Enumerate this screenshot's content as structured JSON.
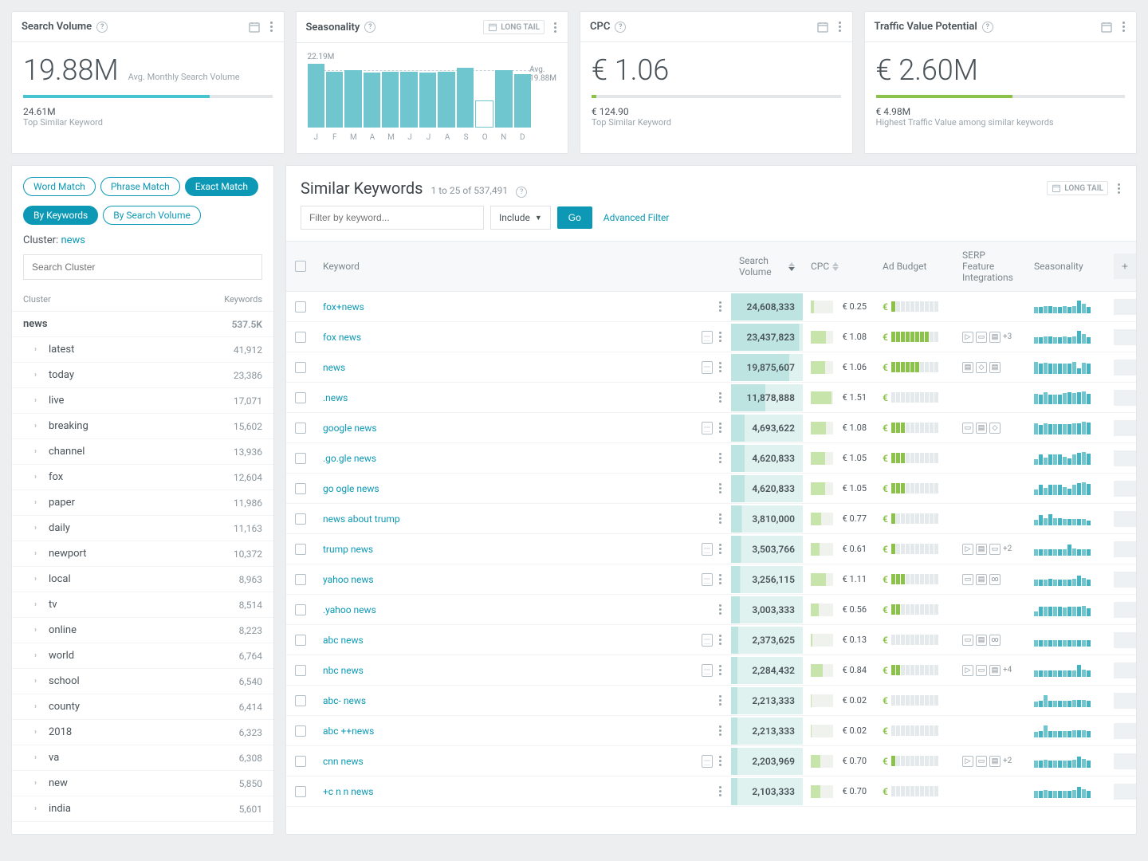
{
  "cards": {
    "search_volume": {
      "title": "Search Volume",
      "value": "19.88M",
      "label": "Avg. Monthly Search Volume",
      "bar_percent": 75,
      "sub_value": "24.61M",
      "sub_label": "Top Similar Keyword",
      "bar_color": "#46c4cf"
    },
    "seasonality": {
      "title": "Seasonality",
      "badge": "LONG TAIL",
      "max_label": "22.19M",
      "avg_label_top": "Avg.",
      "avg_label_val": "19.88M",
      "months": [
        "J",
        "F",
        "M",
        "A",
        "M",
        "J",
        "J",
        "A",
        "S",
        "O",
        "N",
        "D"
      ],
      "bars": [
        1.0,
        0.88,
        0.9,
        0.86,
        0.88,
        0.88,
        0.86,
        0.88,
        0.94,
        0.42,
        0.9,
        0.84
      ],
      "bar_color": "#6fc6cf",
      "outline_index": 9
    },
    "cpc": {
      "title": "CPC",
      "value": "€ 1.06",
      "bar_percent": 2,
      "sub_value": "€ 124.90",
      "sub_label": "Top Similar Keyword",
      "bar_color": "#8bc34a"
    },
    "traffic_value": {
      "title": "Traffic Value Potential",
      "value": "€ 2.60M",
      "bar_percent": 55,
      "sub_value": "€ 4.98M",
      "sub_label": "Highest Traffic Value among similar keywords",
      "bar_color": "#8bc34a"
    }
  },
  "sidebar": {
    "pills_row1": [
      "Word Match",
      "Phrase Match",
      "Exact Match"
    ],
    "pills_row1_active": 2,
    "pills_row2": [
      "By Keywords",
      "By Search Volume"
    ],
    "pills_row2_active": 0,
    "cluster_label": "Cluster:",
    "cluster_value": "news",
    "search_placeholder": "Search Cluster",
    "head_left": "Cluster",
    "head_right": "Keywords",
    "top_row": {
      "name": "news",
      "count": "537.5K"
    },
    "items": [
      {
        "name": "latest",
        "count": "41,912"
      },
      {
        "name": "today",
        "count": "23,386"
      },
      {
        "name": "live",
        "count": "17,071"
      },
      {
        "name": "breaking",
        "count": "15,602"
      },
      {
        "name": "channel",
        "count": "13,936"
      },
      {
        "name": "fox",
        "count": "12,604"
      },
      {
        "name": "paper",
        "count": "11,986"
      },
      {
        "name": "daily",
        "count": "11,163"
      },
      {
        "name": "newport",
        "count": "10,372"
      },
      {
        "name": "local",
        "count": "8,963"
      },
      {
        "name": "tv",
        "count": "8,514"
      },
      {
        "name": "online",
        "count": "8,223"
      },
      {
        "name": "world",
        "count": "6,764"
      },
      {
        "name": "school",
        "count": "6,540"
      },
      {
        "name": "county",
        "count": "6,414"
      },
      {
        "name": "2018",
        "count": "6,323"
      },
      {
        "name": "va",
        "count": "6,308"
      },
      {
        "name": "new",
        "count": "5,850"
      },
      {
        "name": "india",
        "count": "5,601"
      }
    ]
  },
  "main": {
    "title": "Similar Keywords",
    "range": "1 to 25 of 537,491",
    "long_tail": "LONG TAIL",
    "filter_placeholder": "Filter by keyword...",
    "include": "Include",
    "go": "Go",
    "advanced": "Advanced Filter",
    "columns": {
      "keyword": "Keyword",
      "volume": "Search Volume",
      "cpc": "CPC",
      "budget": "Ad Budget",
      "serp": "SERP Feature Integrations",
      "season": "Seasonality"
    },
    "max_volume": 24608333,
    "max_cpc": 1.6,
    "season_colors": [
      "#6fc6cf",
      "#46b3c2"
    ],
    "rows": [
      {
        "kw": "fox+news",
        "vol": "24,608,333",
        "vol_pct": 100,
        "cpc": "€ 0.25",
        "cpc_pct": 16,
        "budget": 1,
        "serp": [],
        "doc": false,
        "season": [
          0.5,
          0.5,
          0.55,
          0.55,
          0.5,
          0.5,
          0.55,
          0.5,
          0.55,
          0.95,
          0.7,
          0.5
        ]
      },
      {
        "kw": "fox news",
        "vol": "23,437,823",
        "vol_pct": 95,
        "cpc": "€ 1.08",
        "cpc_pct": 68,
        "budget": 8,
        "serp": [
          "play",
          "card",
          "doc"
        ],
        "serp_more": "+3",
        "doc": true,
        "season": [
          0.5,
          0.5,
          0.55,
          0.55,
          0.5,
          0.5,
          0.55,
          0.5,
          0.55,
          0.95,
          0.7,
          0.5
        ]
      },
      {
        "kw": "news",
        "vol": "19,875,607",
        "vol_pct": 81,
        "cpc": "€ 1.06",
        "cpc_pct": 66,
        "budget": 6,
        "serp": [
          "doc",
          "chat",
          "doc"
        ],
        "doc": true,
        "season": [
          0.9,
          0.8,
          0.85,
          0.8,
          0.8,
          0.8,
          0.8,
          0.8,
          0.9,
          0.4,
          0.85,
          0.8
        ]
      },
      {
        "kw": ".news",
        "vol": "11,878,888",
        "vol_pct": 48,
        "cpc": "€ 1.51",
        "cpc_pct": 94,
        "budget": 0,
        "serp": [],
        "doc": false,
        "season": [
          0.8,
          0.75,
          0.9,
          0.75,
          0.75,
          0.75,
          0.85,
          0.9,
          0.85,
          0.9,
          0.95,
          0.8
        ]
      },
      {
        "kw": "google news",
        "vol": "4,693,622",
        "vol_pct": 19,
        "cpc": "€ 1.08",
        "cpc_pct": 68,
        "budget": 3,
        "serp": [
          "card",
          "doc",
          "chat"
        ],
        "doc": true,
        "season": [
          0.85,
          0.75,
          0.85,
          0.8,
          0.8,
          0.8,
          0.8,
          0.8,
          0.85,
          0.85,
          1.0,
          0.9
        ]
      },
      {
        "kw": ".go.gle news",
        "vol": "4,620,833",
        "vol_pct": 19,
        "cpc": "€ 1.05",
        "cpc_pct": 66,
        "budget": 3,
        "serp": [],
        "doc": false,
        "season": [
          0.4,
          0.8,
          0.55,
          0.8,
          0.8,
          0.8,
          0.6,
          0.5,
          0.8,
          0.9,
          0.95,
          0.85
        ]
      },
      {
        "kw": "go ogle news",
        "vol": "4,620,833",
        "vol_pct": 19,
        "cpc": "€ 1.05",
        "cpc_pct": 66,
        "budget": 3,
        "serp": [],
        "doc": false,
        "season": [
          0.4,
          0.8,
          0.55,
          0.8,
          0.8,
          0.8,
          0.6,
          0.5,
          0.8,
          0.9,
          0.95,
          0.85
        ]
      },
      {
        "kw": "news about trump",
        "vol": "3,810,000",
        "vol_pct": 15,
        "cpc": "€ 0.77",
        "cpc_pct": 48,
        "budget": 1,
        "serp": [],
        "doc": false,
        "season": [
          0.4,
          0.8,
          0.55,
          0.85,
          0.55,
          0.55,
          0.5,
          0.5,
          0.5,
          0.5,
          0.5,
          0.35
        ]
      },
      {
        "kw": "trump news",
        "vol": "3,503,766",
        "vol_pct": 14,
        "cpc": "€ 0.61",
        "cpc_pct": 38,
        "budget": 1,
        "serp": [
          "play",
          "doc",
          "card"
        ],
        "serp_more": "+2",
        "doc": true,
        "season": [
          0.45,
          0.45,
          0.45,
          0.45,
          0.45,
          0.45,
          0.5,
          0.85,
          0.55,
          0.5,
          0.5,
          0.5
        ]
      },
      {
        "kw": "yahoo news",
        "vol": "3,256,115",
        "vol_pct": 13,
        "cpc": "€ 1.11",
        "cpc_pct": 69,
        "budget": 3,
        "serp": [
          "card",
          "doc",
          "link"
        ],
        "doc": true,
        "season": [
          0.5,
          0.5,
          0.5,
          0.55,
          0.5,
          0.5,
          0.5,
          0.5,
          0.55,
          0.8,
          0.6,
          0.5
        ]
      },
      {
        "kw": ".yahoo news",
        "vol": "3,003,333",
        "vol_pct": 12,
        "cpc": "€ 0.56",
        "cpc_pct": 35,
        "budget": 2,
        "serp": [],
        "doc": false,
        "season": [
          0.35,
          0.7,
          0.7,
          0.75,
          0.7,
          0.7,
          0.65,
          0.7,
          0.75,
          0.75,
          0.8,
          0.6
        ]
      },
      {
        "kw": "abc news",
        "vol": "2,373,625",
        "vol_pct": 10,
        "cpc": "€ 0.13",
        "cpc_pct": 8,
        "budget": 0,
        "serp": [
          "card",
          "doc",
          "link"
        ],
        "doc": true,
        "season": [
          0.5,
          0.5,
          0.5,
          0.5,
          0.5,
          0.5,
          0.5,
          0.5,
          0.5,
          0.5,
          0.5,
          0.5
        ]
      },
      {
        "kw": "nbc news",
        "vol": "2,284,432",
        "vol_pct": 9,
        "cpc": "€ 0.84",
        "cpc_pct": 53,
        "budget": 2,
        "serp": [
          "play",
          "card",
          "doc"
        ],
        "serp_more": "+4",
        "doc": true,
        "season": [
          0.45,
          0.5,
          0.5,
          0.5,
          0.5,
          0.5,
          0.5,
          0.5,
          0.5,
          0.9,
          0.55,
          0.5
        ]
      },
      {
        "kw": "abc- news",
        "vol": "2,213,333",
        "vol_pct": 9,
        "cpc": "€ 0.02",
        "cpc_pct": 1,
        "budget": 0,
        "serp": [],
        "doc": false,
        "season": [
          0.4,
          0.45,
          0.9,
          0.5,
          0.5,
          0.5,
          0.5,
          0.5,
          0.55,
          0.55,
          0.55,
          0.5
        ]
      },
      {
        "kw": "abc ++news",
        "vol": "2,213,333",
        "vol_pct": 9,
        "cpc": "€ 0.02",
        "cpc_pct": 1,
        "budget": 0,
        "serp": [],
        "doc": false,
        "season": [
          0.4,
          0.45,
          0.9,
          0.5,
          0.5,
          0.5,
          0.5,
          0.5,
          0.55,
          0.55,
          0.55,
          0.5
        ]
      },
      {
        "kw": "cnn news",
        "vol": "2,203,969",
        "vol_pct": 9,
        "cpc": "€ 0.70",
        "cpc_pct": 44,
        "budget": 1,
        "serp": [
          "play",
          "card",
          "doc"
        ],
        "serp_more": "+2",
        "doc": true,
        "season": [
          0.55,
          0.55,
          0.6,
          0.55,
          0.55,
          0.55,
          0.55,
          0.55,
          0.6,
          0.85,
          0.65,
          0.55
        ]
      },
      {
        "kw": "+c n n news",
        "vol": "2,103,333",
        "vol_pct": 9,
        "cpc": "€ 0.70",
        "cpc_pct": 44,
        "budget": 0,
        "serp": [],
        "doc": false,
        "season": [
          0.55,
          0.55,
          0.6,
          0.55,
          0.55,
          0.55,
          0.55,
          0.55,
          0.6,
          0.85,
          0.65,
          0.55
        ]
      }
    ]
  }
}
